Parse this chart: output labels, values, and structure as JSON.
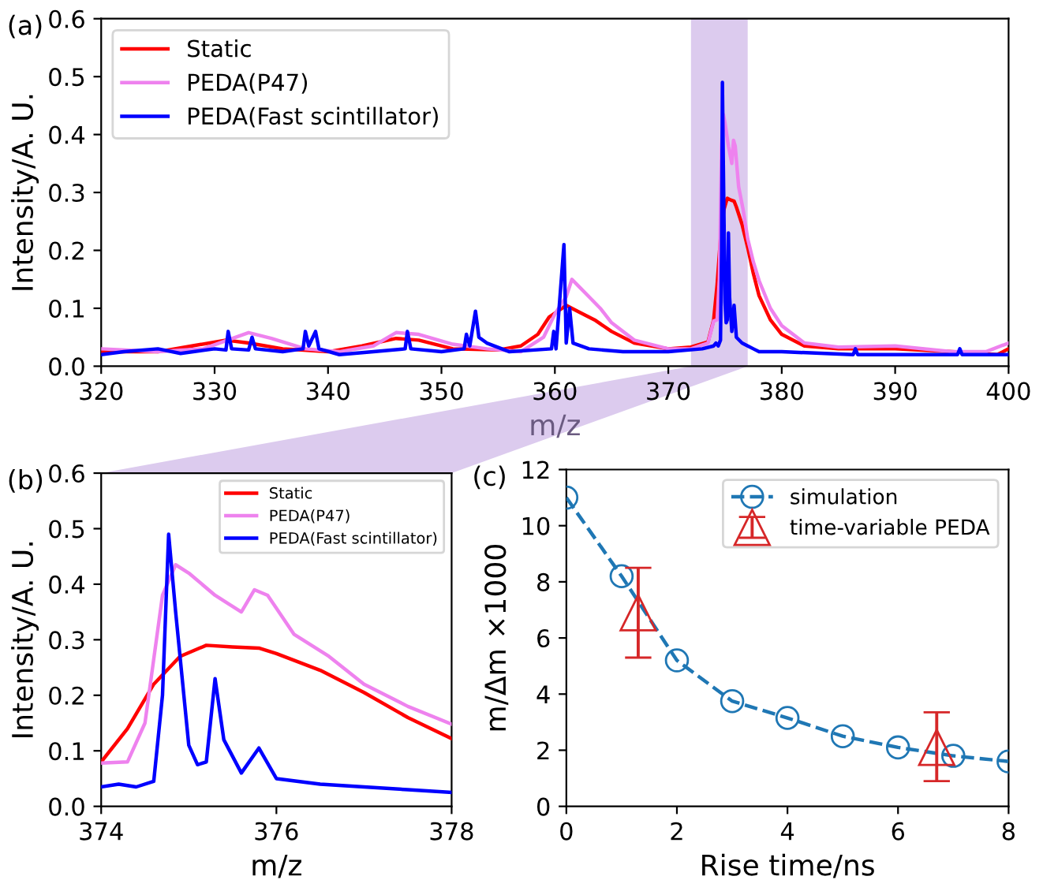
{
  "chart_data": [
    {
      "type": "line",
      "xlabel": "m/z",
      "ylabel": "Intensity/A. U.",
      "annotations": [
        "(a)"
      ],
      "xlim": [
        320,
        400
      ],
      "ylim": [
        0,
        0.6
      ],
      "xticks": [
        320,
        330,
        340,
        350,
        360,
        370,
        380,
        390,
        400
      ],
      "yticks": [
        {
          "value": 0,
          "label": "0.0"
        },
        0.1,
        0.2,
        0.3,
        0.4,
        0.5,
        0.6
      ],
      "legend": "top left",
      "grid": false,
      "bands": [
        {
          "axis": "x",
          "from": 372,
          "to": 377,
          "color": "#dccbee"
        }
      ],
      "series": [
        {
          "name": "Static",
          "color": "#ff0000",
          "x": [
            320,
            325,
            328,
            331,
            333,
            336,
            340,
            343,
            346,
            348,
            351,
            355,
            357,
            358.5,
            359.5,
            361,
            362,
            363.5,
            365,
            367,
            370,
            372,
            373.5,
            374,
            374.3,
            374.6,
            374.9,
            375.2,
            375.5,
            375.8,
            376,
            376.5,
            377,
            377.5,
            378,
            379,
            380,
            382,
            385,
            390,
            395,
            399,
            400
          ],
          "values": [
            0.025,
            0.025,
            0.035,
            0.045,
            0.04,
            0.03,
            0.025,
            0.035,
            0.048,
            0.045,
            0.03,
            0.028,
            0.035,
            0.055,
            0.085,
            0.105,
            0.095,
            0.08,
            0.06,
            0.04,
            0.03,
            0.033,
            0.042,
            0.08,
            0.14,
            0.22,
            0.27,
            0.29,
            0.287,
            0.285,
            0.275,
            0.245,
            0.205,
            0.16,
            0.122,
            0.08,
            0.055,
            0.035,
            0.03,
            0.03,
            0.025,
            0.02,
            0.03
          ]
        },
        {
          "name": "PEDA(P47)",
          "color": "#ee82ee",
          "x": [
            320,
            325,
            329,
            333,
            335,
            338,
            341,
            344,
            346,
            348,
            351,
            354,
            357,
            359,
            360,
            361,
            361.5,
            362,
            363,
            364,
            365,
            367,
            370,
            372,
            373.5,
            374,
            374.3,
            374.5,
            374.7,
            374.85,
            375,
            375.3,
            375.6,
            375.75,
            375.9,
            376.2,
            376.6,
            377,
            377.5,
            378,
            379,
            380,
            382,
            385,
            390,
            395,
            398,
            400
          ],
          "values": [
            0.03,
            0.025,
            0.03,
            0.058,
            0.048,
            0.03,
            0.025,
            0.035,
            0.058,
            0.055,
            0.038,
            0.03,
            0.025,
            0.05,
            0.09,
            0.12,
            0.15,
            0.14,
            0.12,
            0.1,
            0.075,
            0.045,
            0.03,
            0.03,
            0.04,
            0.078,
            0.08,
            0.15,
            0.38,
            0.435,
            0.42,
            0.38,
            0.35,
            0.39,
            0.38,
            0.31,
            0.27,
            0.22,
            0.18,
            0.148,
            0.1,
            0.07,
            0.04,
            0.033,
            0.035,
            0.025,
            0.025,
            0.04
          ]
        },
        {
          "name": "PEDA(Fast scintillator)",
          "color": "#0000ff",
          "x": [
            320,
            322,
            325,
            327,
            330,
            331,
            331.2,
            331.5,
            333,
            333.3,
            333.6,
            336,
            337.8,
            338,
            338.3,
            338.9,
            339.2,
            341,
            344,
            346.8,
            347,
            347.3,
            350,
            352,
            352.2,
            352.5,
            353,
            353.3,
            354,
            356,
            359.7,
            359.9,
            360.1,
            360.8,
            361,
            361.3,
            361.6,
            363,
            366,
            370,
            373,
            374,
            374.2,
            374.4,
            374.6,
            374.7,
            374.77,
            374.85,
            375,
            375.1,
            375.2,
            375.3,
            375.4,
            375.6,
            375.8,
            376,
            376.5,
            377,
            377.5,
            378,
            380,
            386.3,
            386.5,
            386.7,
            390,
            395.5,
            395.7,
            395.9,
            400
          ],
          "values": [
            0.02,
            0.025,
            0.03,
            0.022,
            0.03,
            0.028,
            0.06,
            0.03,
            0.028,
            0.05,
            0.03,
            0.025,
            0.03,
            0.06,
            0.035,
            0.06,
            0.03,
            0.02,
            0.025,
            0.03,
            0.06,
            0.03,
            0.025,
            0.03,
            0.055,
            0.035,
            0.095,
            0.05,
            0.04,
            0.025,
            0.03,
            0.06,
            0.03,
            0.21,
            0.04,
            0.1,
            0.04,
            0.03,
            0.025,
            0.025,
            0.03,
            0.035,
            0.04,
            0.035,
            0.045,
            0.2,
            0.49,
            0.35,
            0.11,
            0.075,
            0.08,
            0.23,
            0.12,
            0.06,
            0.105,
            0.05,
            0.04,
            0.035,
            0.03,
            0.025,
            0.025,
            0.02,
            0.03,
            0.02,
            0.02,
            0.02,
            0.03,
            0.02,
            0.02
          ]
        }
      ]
    },
    {
      "type": "line",
      "xlabel": "m/z",
      "ylabel": "Intensity/A. U.",
      "annotations": [
        "(b)"
      ],
      "xlim": [
        374,
        378
      ],
      "ylim": [
        0,
        0.6
      ],
      "xticks": [
        374,
        376,
        378
      ],
      "yticks": [
        {
          "value": 0,
          "label": "0.0"
        },
        0.1,
        0.2,
        0.3,
        0.4,
        0.5,
        0.6
      ],
      "legend": "top right",
      "grid": false,
      "series": [
        {
          "name": "Static",
          "color": "#ff0000",
          "x": [
            374,
            374.3,
            374.6,
            374.9,
            375.2,
            375.5,
            375.8,
            376,
            376.5,
            377,
            377.5,
            378
          ],
          "values": [
            0.08,
            0.14,
            0.22,
            0.27,
            0.29,
            0.287,
            0.285,
            0.275,
            0.245,
            0.205,
            0.16,
            0.122
          ]
        },
        {
          "name": "PEDA(P47)",
          "color": "#ee82ee",
          "x": [
            374,
            374.3,
            374.5,
            374.7,
            374.85,
            375,
            375.3,
            375.6,
            375.75,
            375.9,
            376.2,
            376.6,
            377,
            377.5,
            378
          ],
          "values": [
            0.078,
            0.08,
            0.15,
            0.38,
            0.435,
            0.42,
            0.38,
            0.35,
            0.39,
            0.38,
            0.31,
            0.27,
            0.22,
            0.18,
            0.148
          ]
        },
        {
          "name": "PEDA(Fast scintillator)",
          "color": "#0000ff",
          "x": [
            374,
            374.2,
            374.4,
            374.6,
            374.7,
            374.77,
            374.85,
            375,
            375.1,
            375.2,
            375.3,
            375.4,
            375.6,
            375.8,
            376,
            376.5,
            377,
            377.5,
            378
          ],
          "values": [
            0.035,
            0.04,
            0.035,
            0.045,
            0.2,
            0.49,
            0.35,
            0.11,
            0.075,
            0.08,
            0.23,
            0.12,
            0.06,
            0.105,
            0.05,
            0.04,
            0.035,
            0.03,
            0.025
          ]
        }
      ]
    },
    {
      "type": "line",
      "xlabel": "Rise time/ns",
      "ylabel": "m/Δm ×1000",
      "annotations": [
        "(c)"
      ],
      "xlim": [
        0,
        8
      ],
      "ylim": [
        0,
        12
      ],
      "xticks": [
        0,
        2,
        4,
        6,
        8
      ],
      "yticks": [
        0,
        2,
        4,
        6,
        8,
        10,
        12
      ],
      "legend": "top right",
      "grid": false,
      "series": [
        {
          "name": "simulation",
          "color": "#1f77b4",
          "marker": "circle",
          "line_style": "dashed",
          "x": [
            0,
            1,
            2,
            3,
            4,
            5,
            6,
            7,
            8
          ],
          "values": [
            11.0,
            8.2,
            5.2,
            3.75,
            3.15,
            2.5,
            2.1,
            1.8,
            1.6
          ]
        },
        {
          "name": "time-variable PEDA",
          "type": "scatter",
          "color": "#d62728",
          "marker": "triangle",
          "x": [
            1.3,
            6.7
          ],
          "values": [
            6.9,
            2.1
          ],
          "errors": [
            [
              5.3,
              8.5
            ],
            [
              0.9,
              3.35
            ]
          ]
        }
      ]
    }
  ]
}
